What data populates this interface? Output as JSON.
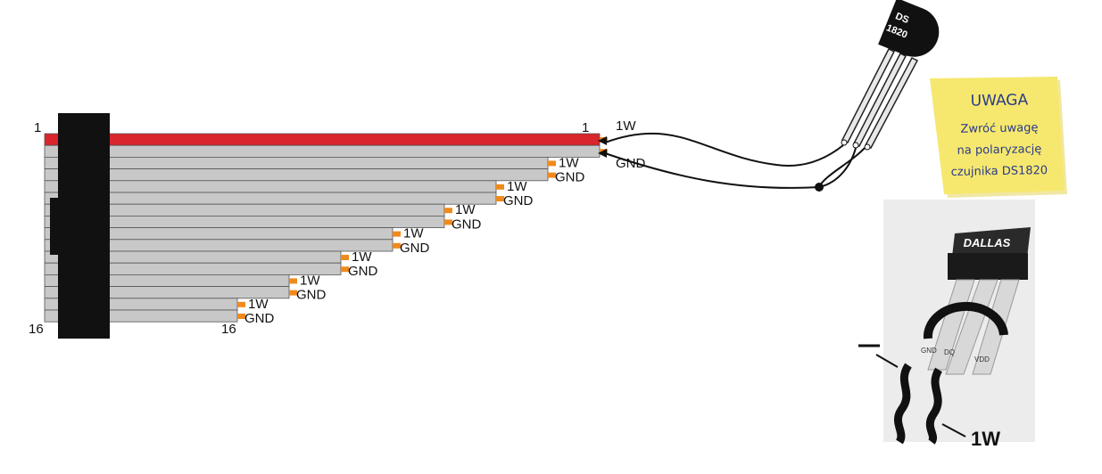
{
  "diagram": {
    "pin_first_label": "1",
    "pin_last_label": "16",
    "ribbon_end_first_label": "1",
    "ribbon_end_last_label": "16",
    "wire_labels": {
      "one_wire": "1W",
      "ground": "GND"
    },
    "top_probe_labels": {
      "one_wire": "1W",
      "ground": "GND"
    },
    "sensor_body_text": [
      "DS",
      "1820"
    ],
    "colors": {
      "ribbon_grey": "#c8c8c8",
      "ribbon_edge": "#555555",
      "red_stripe": "#d8262c",
      "connector": "#111111",
      "solder_pad": "#f08a1c",
      "note_yellow": "#f4e468"
    }
  },
  "note": {
    "title": "UWAGA",
    "lines": [
      "Zwróć uwagę",
      "na polaryzację",
      "czujnika DS1820"
    ]
  },
  "photo": {
    "brand": "DALLAS",
    "pin_labels": [
      "GND",
      "DQ",
      "VDD"
    ],
    "minus_label": "—",
    "wire_label": "1W"
  }
}
